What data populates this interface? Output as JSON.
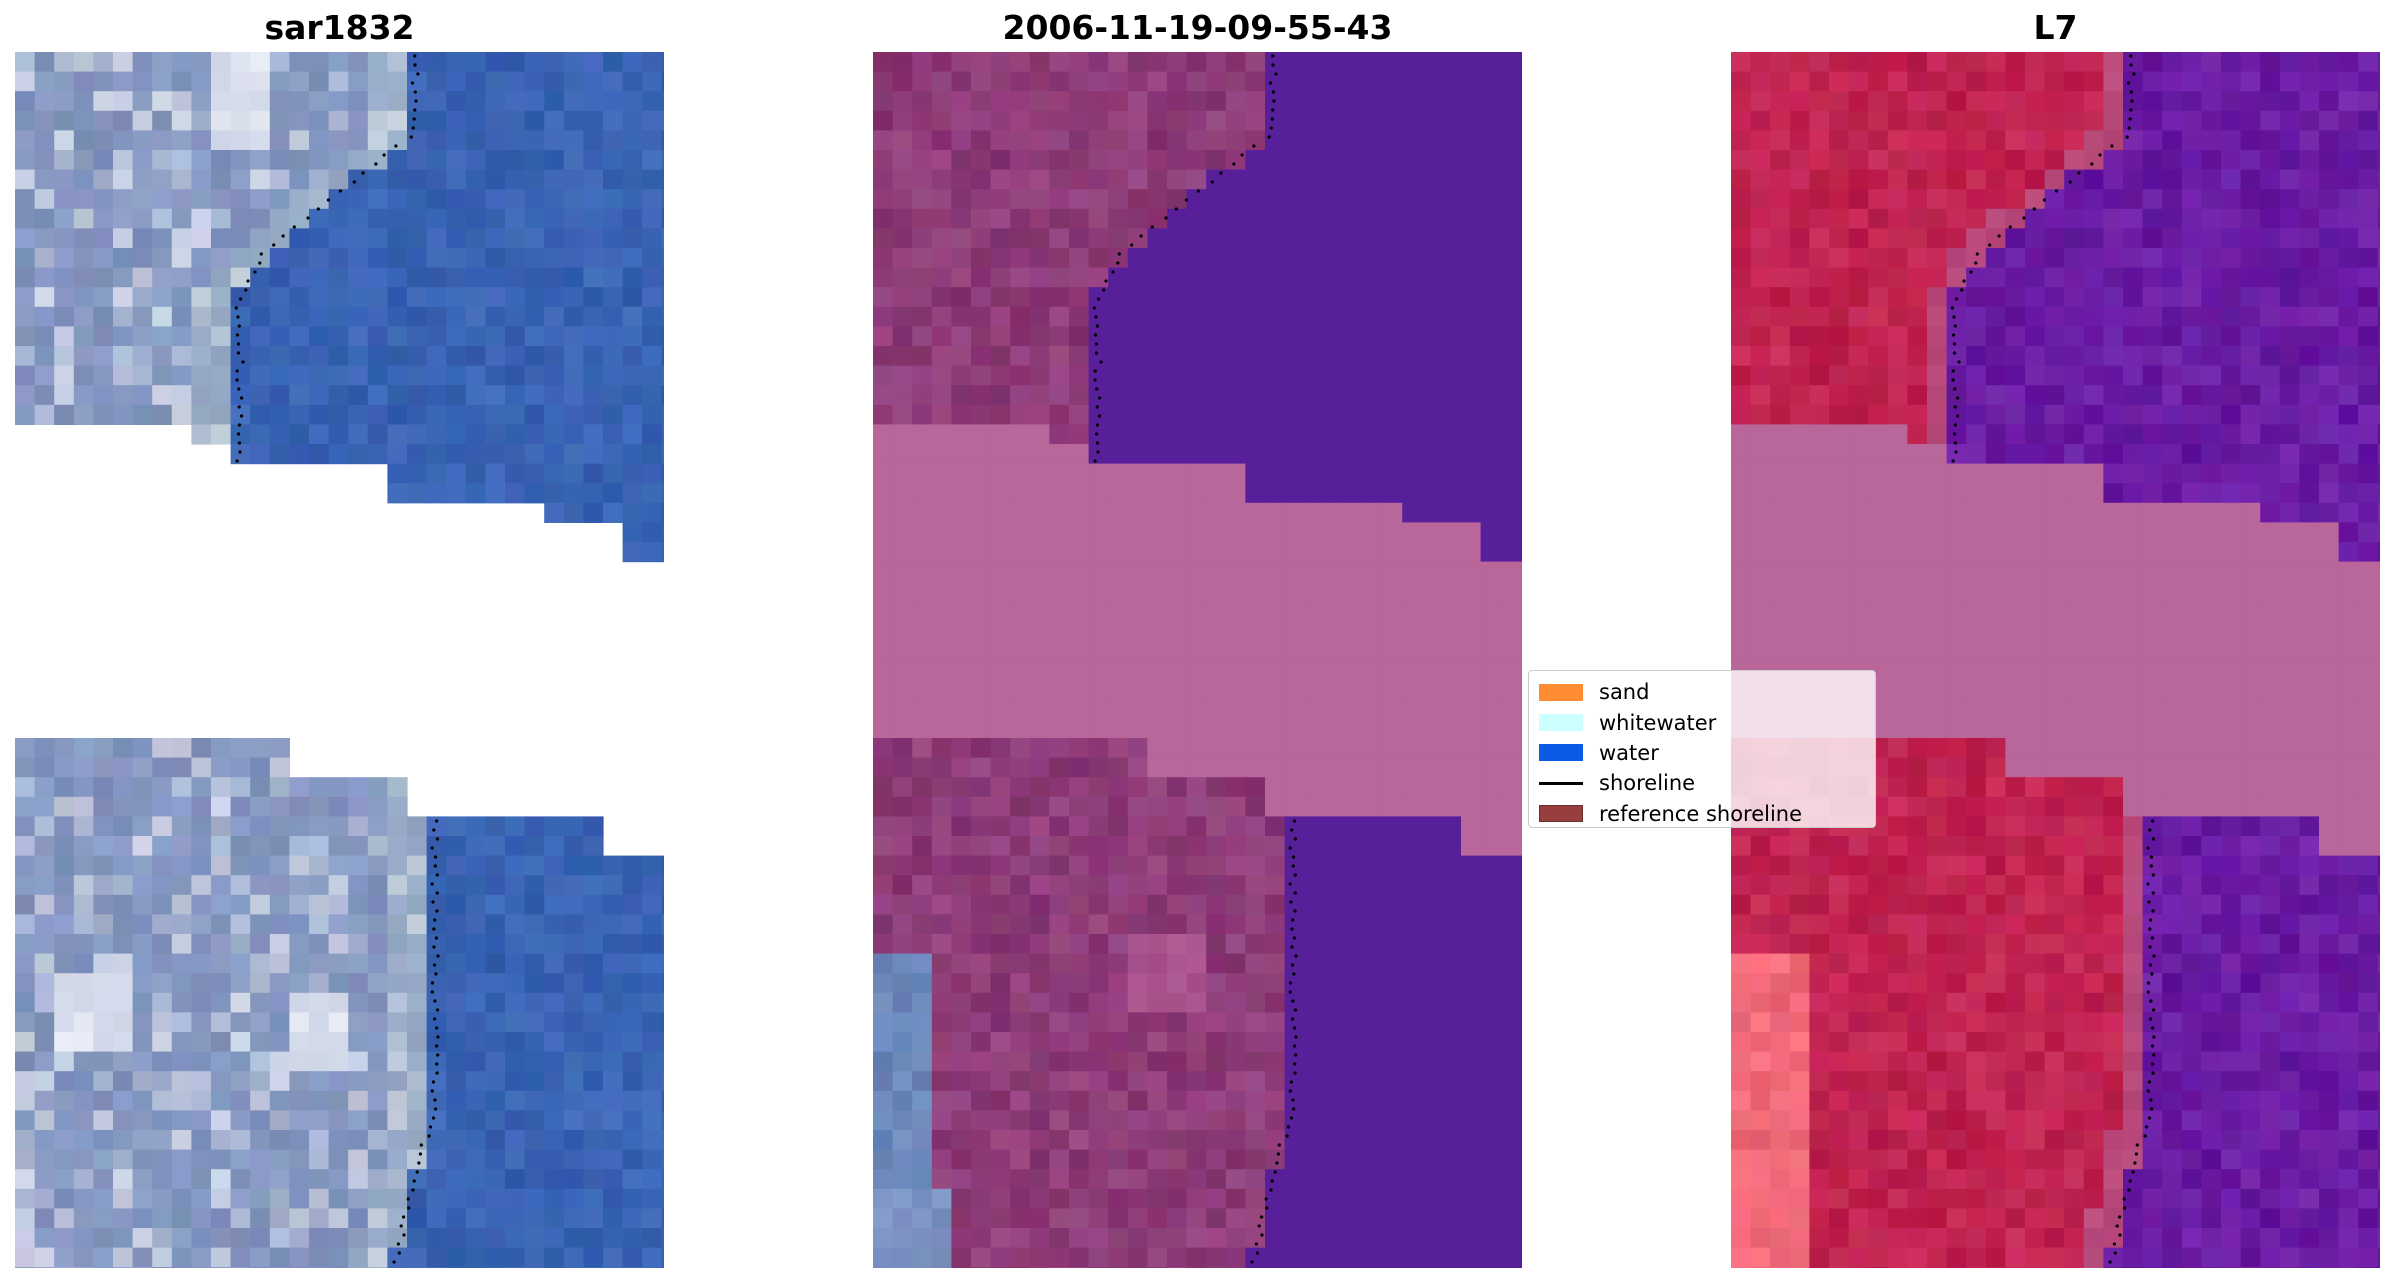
{
  "panels": [
    {
      "title": "sar1832",
      "mode": "rgb"
    },
    {
      "title": "2006-11-19-09-55-43",
      "mode": "classified"
    },
    {
      "title": "L7",
      "mode": "falsecolor"
    }
  ],
  "legend": {
    "items": [
      {
        "label": "sand",
        "color": "#ff8c33"
      },
      {
        "label": "whitewater",
        "color": "#ccffff"
      },
      {
        "label": "water",
        "color": "#0d5ae6"
      },
      {
        "label": "shoreline",
        "color": "#000000"
      },
      {
        "label": "reference shoreline",
        "color": "#8c2a2a"
      }
    ]
  },
  "colors": {
    "water_rgb": "#3a64b4",
    "land_rgb": "#8496c0",
    "water_class": "#57209a",
    "land_class": "#8e3c78",
    "nodata_class": "#b9679a",
    "water_false": "#6a1ca4",
    "land_false": "#c02350",
    "nodata_false": "#b9679a"
  }
}
